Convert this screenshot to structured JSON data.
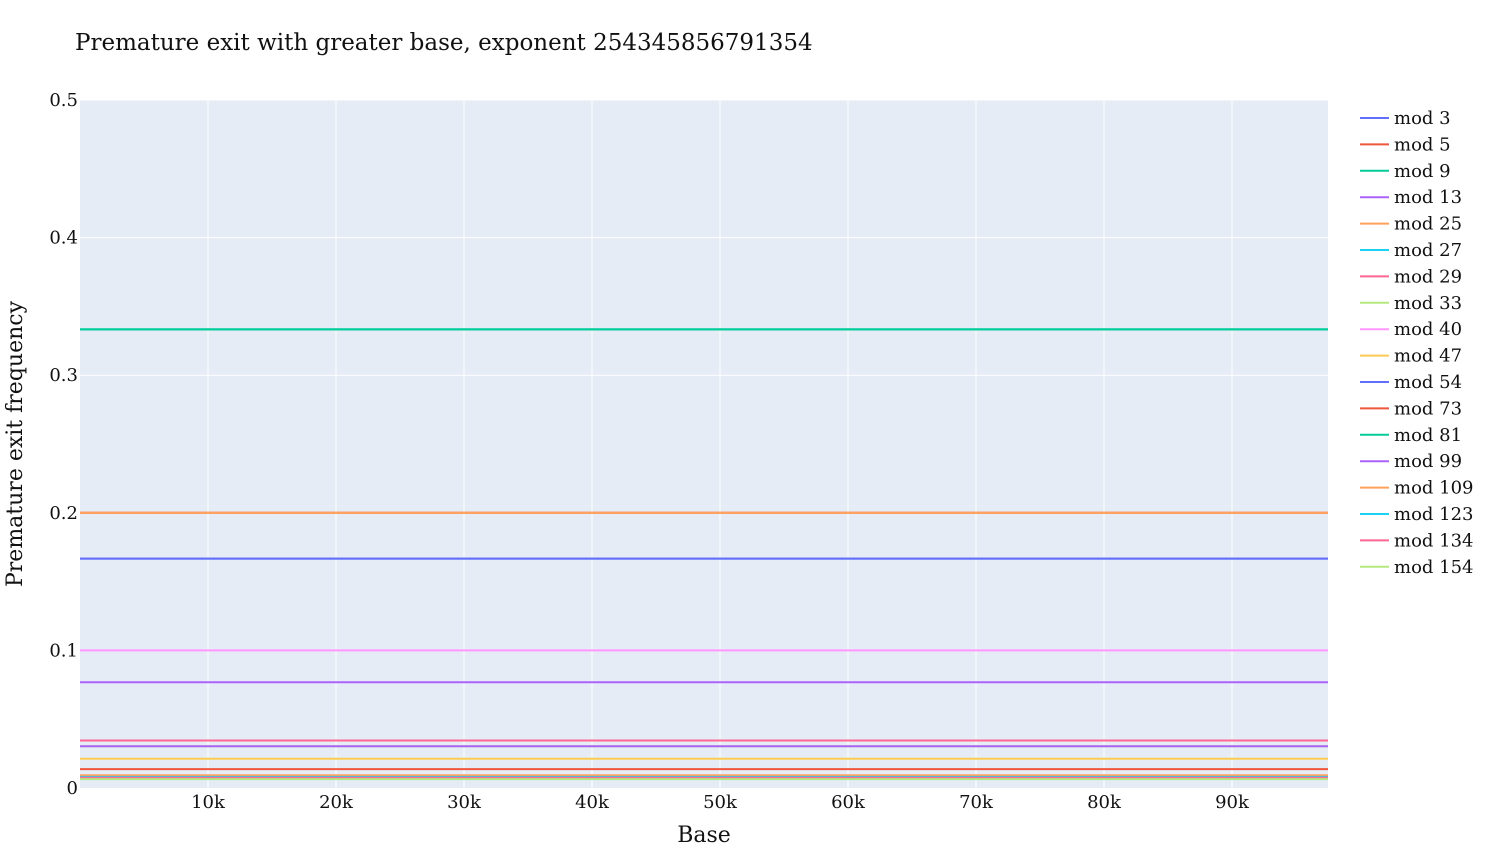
{
  "chart_data": {
    "type": "line",
    "title": "Premature exit with greater base, exponent 254345856791354",
    "xlabel": "Base",
    "ylabel": "Premature exit frequency",
    "xlim": [
      1,
      97500
    ],
    "ylim": [
      0,
      0.5
    ],
    "x_ticks": [
      10000,
      20000,
      30000,
      40000,
      50000,
      60000,
      70000,
      80000,
      90000
    ],
    "x_tick_labels": [
      "10k",
      "20k",
      "30k",
      "40k",
      "50k",
      "60k",
      "70k",
      "80k",
      "90k"
    ],
    "y_ticks": [
      0,
      0.1,
      0.2,
      0.3,
      0.4,
      0.5
    ],
    "y_tick_labels": [
      "0",
      "0.1",
      "0.2",
      "0.3",
      "0.4",
      "0.5"
    ],
    "grid": true,
    "legend_position": "right",
    "plot_background": "#E5ECF6",
    "series": [
      {
        "name": "mod 3",
        "color": "#636EFA",
        "x": [
          1,
          97500
        ],
        "y": [
          0.1667,
          0.1667
        ]
      },
      {
        "name": "mod 5",
        "color": "#EF553B",
        "x": [
          1,
          97500
        ],
        "y": [
          0.2,
          0.2
        ]
      },
      {
        "name": "mod 9",
        "color": "#00CC96",
        "x": [
          1,
          97500
        ],
        "y": [
          0.3333,
          0.3333
        ]
      },
      {
        "name": "mod 13",
        "color": "#AB63FA",
        "x": [
          1,
          97500
        ],
        "y": [
          0.0769,
          0.0769
        ]
      },
      {
        "name": "mod 25",
        "color": "#FFA15A",
        "x": [
          1,
          97500
        ],
        "y": [
          0.2,
          0.2
        ]
      },
      {
        "name": "mod 27",
        "color": "#19D3F3",
        "x": [
          1,
          97500
        ],
        "y": [
          0.3333,
          0.3333
        ]
      },
      {
        "name": "mod 29",
        "color": "#FF6692",
        "x": [
          1,
          97500
        ],
        "y": [
          0.0345,
          0.0345
        ]
      },
      {
        "name": "mod 33",
        "color": "#B6E880",
        "x": [
          1,
          97500
        ],
        "y": [
          0.0303,
          0.0303
        ]
      },
      {
        "name": "mod 40",
        "color": "#FF97FF",
        "x": [
          1,
          97500
        ],
        "y": [
          0.1,
          0.1
        ]
      },
      {
        "name": "mod 47",
        "color": "#FECB52",
        "x": [
          1,
          97500
        ],
        "y": [
          0.0213,
          0.0213
        ]
      },
      {
        "name": "mod 54",
        "color": "#636EFA",
        "x": [
          1,
          97500
        ],
        "y": [
          0.1667,
          0.1667
        ]
      },
      {
        "name": "mod 73",
        "color": "#EF553B",
        "x": [
          1,
          97500
        ],
        "y": [
          0.0137,
          0.0137
        ]
      },
      {
        "name": "mod 81",
        "color": "#00CC96",
        "x": [
          1,
          97500
        ],
        "y": [
          0.3333,
          0.3333
        ]
      },
      {
        "name": "mod 99",
        "color": "#AB63FA",
        "x": [
          1,
          97500
        ],
        "y": [
          0.0303,
          0.0303
        ]
      },
      {
        "name": "mod 109",
        "color": "#FFA15A",
        "x": [
          1,
          97500
        ],
        "y": [
          0.0092,
          0.0092
        ]
      },
      {
        "name": "mod 123",
        "color": "#19D3F3",
        "x": [
          1,
          97500
        ],
        "y": [
          0.0081,
          0.0081
        ]
      },
      {
        "name": "mod 134",
        "color": "#FF6692",
        "x": [
          1,
          97500
        ],
        "y": [
          0.0075,
          0.0075
        ]
      },
      {
        "name": "mod 154",
        "color": "#B6E880",
        "x": [
          1,
          97500
        ],
        "y": [
          0.0065,
          0.0065
        ]
      }
    ]
  }
}
